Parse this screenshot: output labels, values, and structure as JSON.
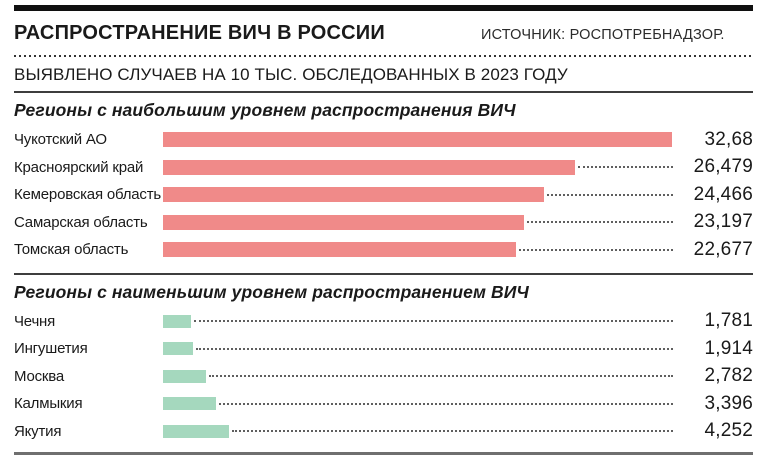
{
  "header": {
    "title": "РАСПРОСТРАНЕНИЕ ВИЧ В РОССИИ",
    "source": "ИСТОЧНИК: РОСПОТРЕБНАДЗОР.",
    "subtitle": "ВЫЯВЛЕНО СЛУЧАЕВ НА 10 ТЫС. ОБСЛЕДОВАННЫХ В 2023 ГОДУ"
  },
  "colors": {
    "bar_high": "#F08A89",
    "bar_low": "#A5D8BE",
    "rule_dark": "#101010",
    "rule_gray": "#6f6f6f"
  },
  "chart_data": {
    "type": "bar",
    "orientation": "horizontal",
    "title": "РАСПРОСТРАНЕНИЕ ВИЧ В РОССИИ",
    "subtitle": "ВЫЯВЛЕНО СЛУЧАЕВ НА 10 ТЫС. ОБСЛЕДОВАННЫХ В 2023 ГОДУ",
    "xlim": [
      0,
      32.68
    ],
    "grid": false,
    "legend": false,
    "sections": [
      {
        "title": "Регионы с наибольшим уровнем распространения ВИЧ",
        "bar_color": "#F08A89",
        "categories": [
          "Чукотский АО",
          "Красноярский край",
          "Кемеровская область",
          "Самарская область",
          "Томская область"
        ],
        "values": [
          32.68,
          26.479,
          24.466,
          23.197,
          22.677
        ],
        "value_labels": [
          "32,68",
          "26,479",
          "24,466",
          "23,197",
          "22,677"
        ]
      },
      {
        "title": "Регионы с наименьшим уровнем распространением ВИЧ",
        "bar_color": "#A5D8BE",
        "categories": [
          "Чечня",
          "Ингушетия",
          "Москва",
          "Калмыкия",
          "Якутия"
        ],
        "values": [
          1.781,
          1.914,
          2.782,
          3.396,
          4.252
        ],
        "value_labels": [
          "1,781",
          "1,914",
          "2,782",
          "3,396",
          "4,252"
        ]
      }
    ]
  }
}
